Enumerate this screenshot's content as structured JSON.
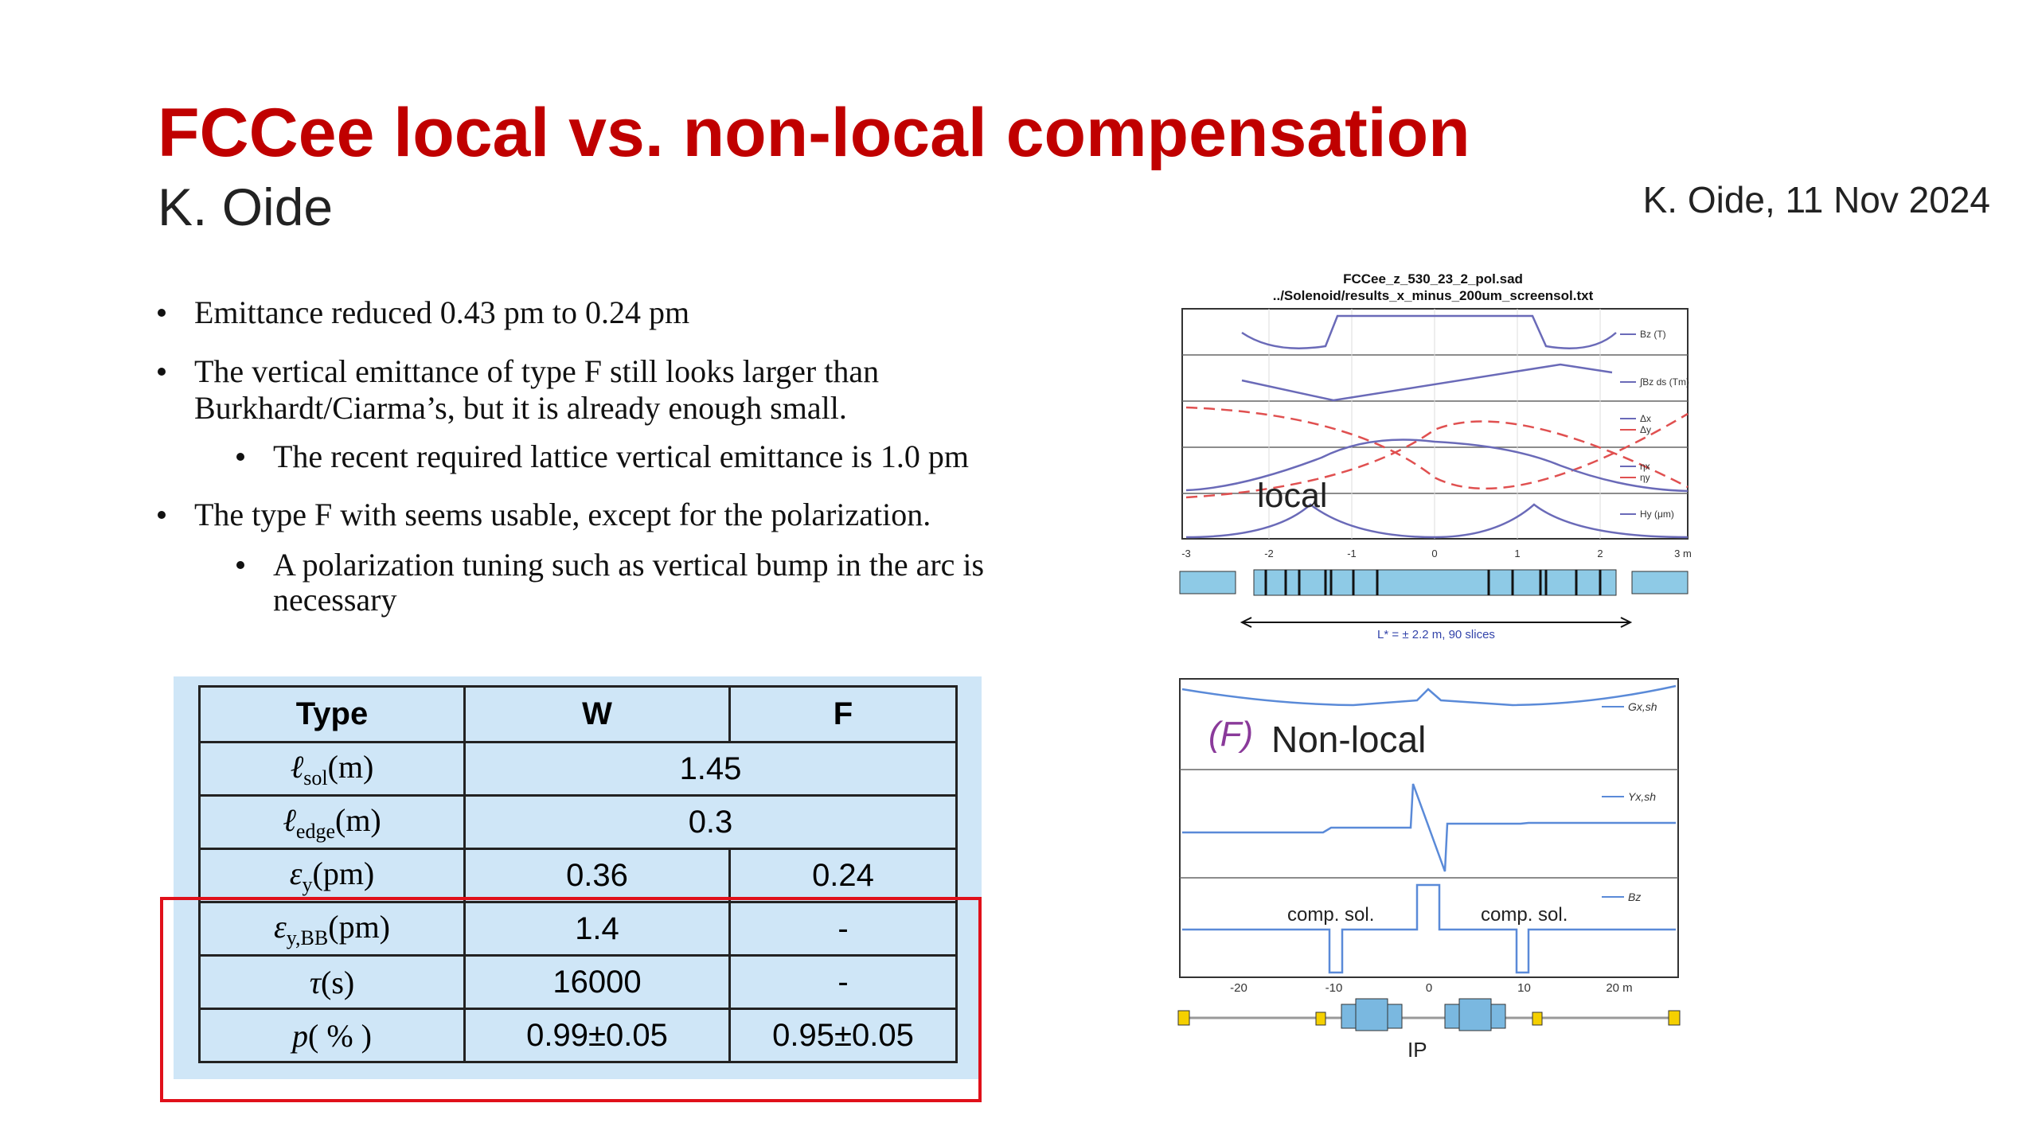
{
  "header": {
    "title": "FCCee local vs. non-local compensation",
    "author": "K. Oide",
    "date": "K. Oide, 11 Nov 2024"
  },
  "bullets": [
    {
      "level": 1,
      "lines": [
        "Emittance reduced 0.43 pm to 0.24 pm"
      ]
    },
    {
      "level": 1,
      "lines": [
        "The vertical emittance of type F still looks larger than",
        "Burkhardt/Ciarma’s, but it is already enough small."
      ]
    },
    {
      "level": 2,
      "lines": [
        "The recent required lattice vertical emittance is 1.0 pm"
      ]
    },
    {
      "level": 1,
      "lines": [
        "The type F with seems usable, except for the polarization."
      ]
    },
    {
      "level": 2,
      "lines": [
        "A polarization tuning such as vertical bump in the arc is",
        "necessary"
      ]
    }
  ],
  "table": {
    "header": [
      "Type",
      "W",
      "F"
    ],
    "rows": [
      {
        "symbol": "ℓ",
        "sub": "sol",
        "unit": "(m)",
        "cells": [
          "1.45"
        ]
      },
      {
        "symbol": "ℓ",
        "sub": "edge",
        "unit": "(m)",
        "cells": [
          "0.3"
        ]
      },
      {
        "symbol": "ε",
        "sub": "y",
        "unit": "(pm)",
        "cells": [
          "0.36",
          "0.24"
        ]
      },
      {
        "symbol": "ε",
        "sub": "y,BB",
        "unit": "(pm)",
        "cells": [
          "1.4",
          "-"
        ]
      },
      {
        "symbol": "τ",
        "sub": "",
        "unit": "(s)",
        "cells": [
          "16000",
          "-"
        ]
      },
      {
        "symbol": "p",
        "sub": "",
        "unit": "( % )",
        "cells": [
          "0.99±0.05",
          "0.95±0.05"
        ]
      }
    ]
  },
  "plot_local": {
    "title": [
      "FCCee_z_530_23_2_pol.sad",
      "../Solenoid/results_x_minus_200um_screensol.txt"
    ],
    "label": "local",
    "legends": [
      "Bz (T)",
      "∫Bz ds (Tm)",
      "Δx",
      "Δy",
      "ηx",
      "ηy",
      "Hy (μm)"
    ],
    "xticks": [
      "-3",
      "-2",
      "-1",
      "0",
      "1",
      "2",
      "3 m"
    ],
    "span": "L* = ± 2.2 m, 90 slices"
  },
  "plot_nonlocal": {
    "tag": "(F)",
    "label": "Non-local",
    "comp": [
      "comp. sol.",
      "comp. sol."
    ],
    "ip": "IP",
    "legends": [
      "Gx,sh",
      "Yx,sh",
      "Bz"
    ],
    "xticks": [
      "-20",
      "-10",
      "0",
      "10",
      "20 m"
    ]
  }
}
